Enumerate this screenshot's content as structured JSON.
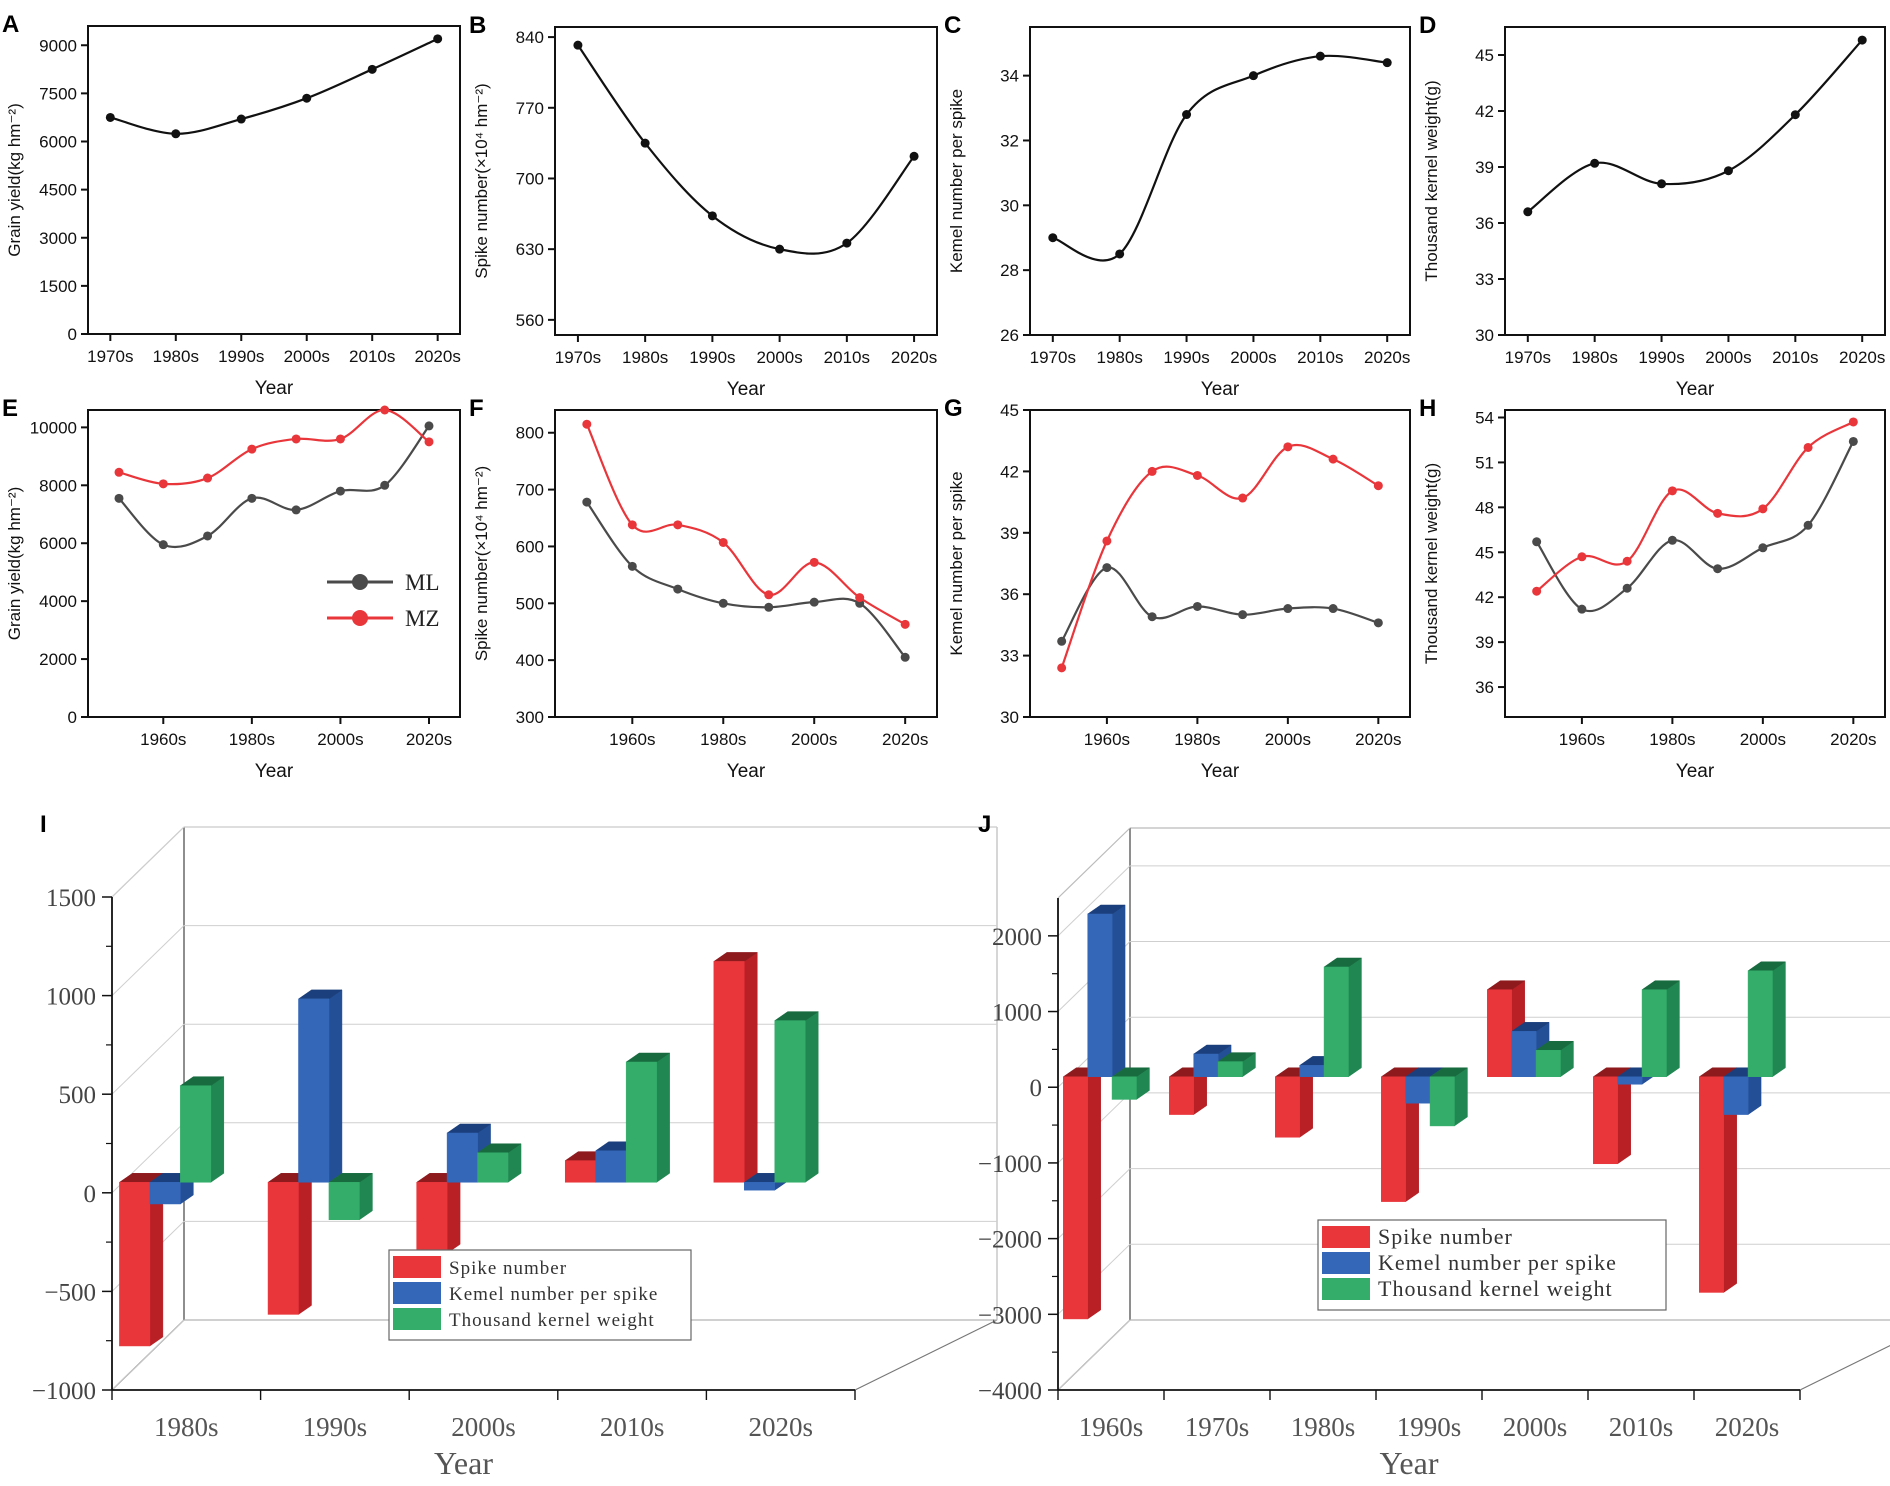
{
  "colors": {
    "black": "#111111",
    "ml": "#4a4a4a",
    "mz": "#e8363b",
    "red": "#e8363b",
    "red_side": "#b82025",
    "red_top": "#8e1a1e",
    "blue": "#3467b8",
    "blue_side": "#234f97",
    "blue_top": "#1b3f7c",
    "green": "#34ad6a",
    "green_side": "#218752",
    "green_top": "#176b3f"
  },
  "chart_data": [
    {
      "id": "A",
      "type": "line",
      "panel_label": "A",
      "xlabel": "Year",
      "ylabel": "Grain yield(kg hm⁻²)",
      "categories": [
        "1970s",
        "1980s",
        "1990s",
        "2000s",
        "2010s",
        "2020s"
      ],
      "yticks": [
        "0",
        "1500",
        "3000",
        "4500",
        "6000",
        "7500",
        "9000"
      ],
      "ylim": [
        0,
        9600
      ],
      "series": [
        {
          "name": "yield",
          "color": "black",
          "values": [
            6750,
            6240,
            6700,
            7350,
            8250,
            9200
          ]
        }
      ]
    },
    {
      "id": "B",
      "type": "line",
      "panel_label": "B",
      "xlabel": "Year",
      "ylabel": "Spike number(×10⁴ hm⁻²)",
      "categories": [
        "1970s",
        "1980s",
        "1990s",
        "2000s",
        "2010s",
        "2020s"
      ],
      "yticks": [
        "560",
        "630",
        "700",
        "770",
        "840"
      ],
      "ylim": [
        545,
        850
      ],
      "series": [
        {
          "name": "spike",
          "color": "black",
          "values": [
            832,
            735,
            663,
            630,
            636,
            722
          ]
        }
      ]
    },
    {
      "id": "C",
      "type": "line",
      "panel_label": "C",
      "xlabel": "Year",
      "ylabel": "Kemel number per spike",
      "categories": [
        "1970s",
        "1980s",
        "1990s",
        "2000s",
        "2010s",
        "2020s"
      ],
      "yticks": [
        "26",
        "28",
        "30",
        "32",
        "34"
      ],
      "ylim": [
        26,
        35.5
      ],
      "series": [
        {
          "name": "kernel",
          "color": "black",
          "values": [
            29.0,
            28.5,
            32.8,
            34.0,
            34.6,
            34.4
          ]
        }
      ]
    },
    {
      "id": "D",
      "type": "line",
      "panel_label": "D",
      "xlabel": "Year",
      "ylabel": "Thousand kernel weight(g)",
      "categories": [
        "1970s",
        "1980s",
        "1990s",
        "2000s",
        "2010s",
        "2020s"
      ],
      "yticks": [
        "30",
        "33",
        "36",
        "39",
        "42",
        "45"
      ],
      "ylim": [
        30,
        46.5
      ],
      "series": [
        {
          "name": "tkw",
          "color": "black",
          "values": [
            36.6,
            39.2,
            38.1,
            38.8,
            41.8,
            45.8
          ]
        }
      ]
    },
    {
      "id": "E",
      "type": "line",
      "panel_label": "E",
      "xlabel": "Year",
      "ylabel": "Grain yield(kg hm⁻²)",
      "x": [
        1950,
        1960,
        1970,
        1980,
        1990,
        2000,
        2010,
        2020
      ],
      "xticks": [
        "1960s",
        "1980s",
        "2000s",
        "2020s"
      ],
      "xtick_values": [
        1960,
        1980,
        2000,
        2020
      ],
      "xlim": [
        1943,
        2027
      ],
      "yticks": [
        "0",
        "2000",
        "4000",
        "6000",
        "8000",
        "10000"
      ],
      "ylim": [
        0,
        10600
      ],
      "legend": {
        "position": "center-right",
        "entries": [
          "ML",
          "MZ"
        ]
      },
      "series": [
        {
          "name": "ML",
          "color": "ml",
          "values": [
            7550,
            5950,
            6250,
            7550,
            7150,
            7800,
            8000,
            10050
          ]
        },
        {
          "name": "MZ",
          "color": "mz",
          "values": [
            8450,
            8050,
            8250,
            9250,
            9600,
            9600,
            10600,
            9500
          ]
        }
      ]
    },
    {
      "id": "F",
      "type": "line",
      "panel_label": "F",
      "xlabel": "Year",
      "ylabel": "Spike number(×10⁴ hm⁻²)",
      "x": [
        1950,
        1960,
        1970,
        1980,
        1990,
        2000,
        2010,
        2020
      ],
      "xticks": [
        "1960s",
        "1980s",
        "2000s",
        "2020s"
      ],
      "xtick_values": [
        1960,
        1980,
        2000,
        2020
      ],
      "xlim": [
        1943,
        2027
      ],
      "yticks": [
        "300",
        "400",
        "500",
        "600",
        "700",
        "800"
      ],
      "ylim": [
        300,
        840
      ],
      "series": [
        {
          "name": "ML",
          "color": "ml",
          "values": [
            678,
            565,
            525,
            500,
            493,
            502,
            500,
            405
          ]
        },
        {
          "name": "MZ",
          "color": "mz",
          "values": [
            815,
            638,
            638,
            607,
            515,
            572,
            510,
            463
          ]
        }
      ]
    },
    {
      "id": "G",
      "type": "line",
      "panel_label": "G",
      "xlabel": "Year",
      "ylabel": "Kemel number per spike",
      "x": [
        1950,
        1960,
        1970,
        1980,
        1990,
        2000,
        2010,
        2020
      ],
      "xticks": [
        "1960s",
        "1980s",
        "2000s",
        "2020s"
      ],
      "xtick_values": [
        1960,
        1980,
        2000,
        2020
      ],
      "xlim": [
        1943,
        2027
      ],
      "yticks": [
        "30",
        "33",
        "36",
        "39",
        "42",
        "45"
      ],
      "ylim": [
        30,
        45
      ],
      "series": [
        {
          "name": "ML",
          "color": "ml",
          "values": [
            33.7,
            37.3,
            34.9,
            35.4,
            35.0,
            35.3,
            35.3,
            34.6
          ]
        },
        {
          "name": "MZ",
          "color": "mz",
          "values": [
            32.4,
            38.6,
            42.0,
            41.8,
            40.7,
            43.2,
            42.6,
            41.3
          ]
        }
      ]
    },
    {
      "id": "H",
      "type": "line",
      "panel_label": "H",
      "xlabel": "Year",
      "ylabel": "Thousand kernel weight(g)",
      "x": [
        1950,
        1960,
        1970,
        1980,
        1990,
        2000,
        2010,
        2020
      ],
      "xticks": [
        "1960s",
        "1980s",
        "2000s",
        "2020s"
      ],
      "xtick_values": [
        1960,
        1980,
        2000,
        2020
      ],
      "xlim": [
        1943,
        2027
      ],
      "yticks": [
        "36",
        "39",
        "42",
        "45",
        "48",
        "51",
        "54"
      ],
      "ylim": [
        34,
        54.5
      ],
      "series": [
        {
          "name": "ML",
          "color": "ml",
          "values": [
            45.7,
            41.2,
            42.6,
            45.8,
            43.9,
            45.3,
            46.8,
            52.4
          ]
        },
        {
          "name": "MZ",
          "color": "mz",
          "values": [
            42.4,
            44.7,
            44.4,
            49.1,
            47.6,
            47.9,
            52.0,
            53.7
          ]
        }
      ]
    },
    {
      "id": "I",
      "type": "bar",
      "panel_label": "I",
      "xlabel": "Year",
      "categories": [
        "1980s",
        "1990s",
        "2000s",
        "2010s",
        "2020s"
      ],
      "yticks": [
        "1500",
        "1000",
        "500",
        "0",
        "−500",
        "−1000"
      ],
      "ytick_values": [
        1500,
        1000,
        500,
        0,
        -500,
        -1000
      ],
      "ylim": [
        -1000,
        1500
      ],
      "legend": {
        "position": "bottom-center",
        "entries": [
          "Spike number",
          "Kemel number per spike",
          "Thousand kernel weight"
        ]
      },
      "series": [
        {
          "name": "Spike number",
          "color": "red",
          "values": [
            -830,
            -670,
            -360,
            110,
            1120
          ]
        },
        {
          "name": "Kemel number per spike",
          "color": "blue",
          "values": [
            -110,
            930,
            250,
            160,
            -40
          ]
        },
        {
          "name": "Thousand kernel weight",
          "color": "green",
          "values": [
            490,
            -190,
            150,
            610,
            820
          ]
        }
      ]
    },
    {
      "id": "J",
      "type": "bar",
      "panel_label": "J",
      "xlabel": "Year",
      "categories": [
        "1960s",
        "1970s",
        "1980s",
        "1990s",
        "2000s",
        "2010s",
        "2020s"
      ],
      "yticks": [
        "2000",
        "1000",
        "0",
        "−1000",
        "−2000",
        "−3000",
        "−4000"
      ],
      "ytick_values": [
        2000,
        1000,
        0,
        -1000,
        -2000,
        -3000,
        -4000
      ],
      "ylim": [
        -4000,
        2500
      ],
      "legend": {
        "position": "bottom-center",
        "entries": [
          "Spike number",
          "Kemel number per spike",
          "Thousand kernel weight"
        ]
      },
      "series": [
        {
          "name": "Spike number",
          "color": "red",
          "values": [
            -3200,
            -500,
            -800,
            -1650,
            1150,
            -1150,
            -2850
          ]
        },
        {
          "name": "Kemel number per spike",
          "color": "blue",
          "values": [
            2150,
            300,
            150,
            -350,
            600,
            -100,
            -500
          ]
        },
        {
          "name": "Thousand kernel weight",
          "color": "green",
          "values": [
            -300,
            200,
            1450,
            -650,
            350,
            1150,
            1400
          ]
        }
      ]
    }
  ]
}
